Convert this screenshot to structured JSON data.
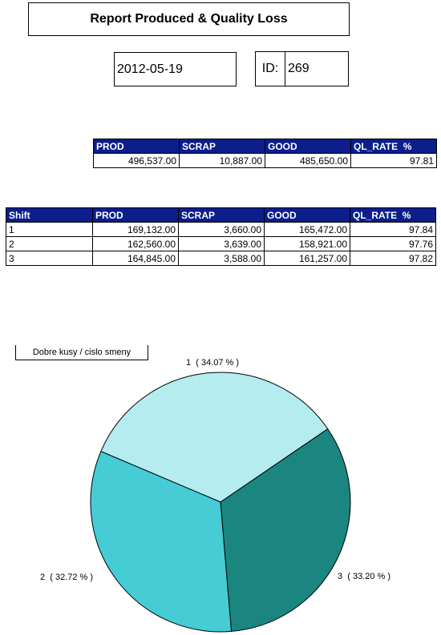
{
  "report": {
    "title": "Report Produced & Quality Loss",
    "date": "2012-05-19",
    "id_label": "ID:",
    "id_value": "269"
  },
  "summary": {
    "headers": [
      "PROD",
      "SCRAP",
      "GOOD",
      "QL_RATE  %"
    ],
    "row": [
      "496,537.00",
      "10,887.00",
      "485,650.00",
      "97.81"
    ]
  },
  "shifts": {
    "headers": [
      "Shift",
      "PROD",
      "SCRAP",
      "GOOD",
      "QL_RATE  %"
    ],
    "rows": [
      [
        "1",
        "169,132.00",
        "3,660.00",
        "165,472.00",
        "97.84"
      ],
      [
        "2",
        "162,560.00",
        "3,639.00",
        "158,921.00",
        "97.76"
      ],
      [
        "3",
        "164,845.00",
        "3,588.00",
        "161,257.00",
        "97.82"
      ]
    ]
  },
  "chart_data": {
    "type": "pie",
    "legend_title": "Dobre kusy / cislo smeny",
    "slices": [
      {
        "label": "1  ( 34.07 % )",
        "name": "1",
        "value": 34.07,
        "color": "#b5ecf0"
      },
      {
        "label": "2  ( 32.72 % )",
        "name": "2",
        "value": 32.72,
        "color": "#46ccd4"
      },
      {
        "label": "3  ( 33.20 % )",
        "name": "3",
        "value": 33.2,
        "color": "#1b8580"
      }
    ]
  }
}
